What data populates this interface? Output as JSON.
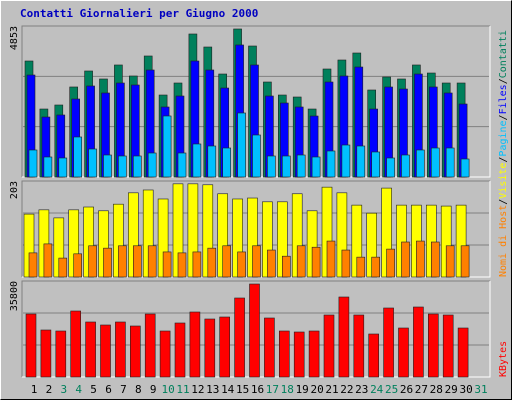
{
  "title": "Contatti Giornalieri per Giugno 2000",
  "legend_separator": "/",
  "weekend_days": [
    3,
    4,
    10,
    11,
    17,
    18,
    24,
    25,
    31
  ],
  "weekend_color": "#00805c",
  "chart_data": [
    {
      "type": "bar",
      "ylim": [
        0,
        4853
      ],
      "yticks": [
        4853
      ],
      "series": [
        {
          "name": "Contatti",
          "color": "#00805c",
          "values": [
            3728,
            2185,
            2314,
            2893,
            3407,
            3150,
            3600,
            3246,
            3889,
            2635,
            3021,
            4596,
            4178,
            3310,
            4757,
            4210,
            3053,
            2635,
            2571,
            2185,
            3471,
            3760,
            3985,
            2796,
            3214,
            3150,
            3600,
            3342,
            3021,
            3021,
            null
          ]
        },
        {
          "name": "Files",
          "color": "#0000ff",
          "values": [
            3278,
            1928,
            1993,
            2507,
            2925,
            2700,
            3021,
            2957,
            3439,
            2250,
            2603,
            3728,
            3439,
            2860,
            4243,
            3600,
            2603,
            2378,
            2250,
            1960,
            3053,
            3246,
            3535,
            2185,
            2893,
            2828,
            3310,
            2893,
            2700,
            2346,
            null
          ]
        },
        {
          "name": "Pagine",
          "color": "#00c0ff",
          "values": [
            868,
            643,
            611,
            1286,
            900,
            707,
            675,
            675,
            771,
            1961,
            771,
            1061,
            996,
            932,
            2057,
            1350,
            675,
            675,
            707,
            643,
            836,
            1028,
            996,
            804,
            611,
            707,
            868,
            932,
            932,
            579,
            null
          ]
        }
      ]
    },
    {
      "type": "bar",
      "ylim": [
        0,
        203
      ],
      "yticks": [
        203
      ],
      "series": [
        {
          "name": "Visite",
          "color": "#ffff00",
          "values": [
            133,
            142,
            125,
            142,
            148,
            140,
            154,
            178,
            184,
            165,
            197,
            197,
            195,
            176,
            165,
            167,
            159,
            159,
            176,
            140,
            190,
            178,
            152,
            135,
            188,
            152,
            152,
            152,
            150,
            152,
            null
          ]
        },
        {
          "name": "Nomi di Host",
          "color": "#ff8000",
          "values": [
            51,
            70,
            40,
            49,
            66,
            61,
            66,
            66,
            66,
            53,
            51,
            53,
            61,
            66,
            53,
            66,
            57,
            44,
            66,
            63,
            76,
            57,
            42,
            42,
            59,
            74,
            76,
            74,
            66,
            66,
            null
          ]
        }
      ]
    },
    {
      "type": "bar",
      "ylim": [
        0,
        35800
      ],
      "yticks": [
        35800
      ],
      "categories": [
        1,
        2,
        3,
        4,
        5,
        6,
        7,
        8,
        9,
        10,
        11,
        12,
        13,
        14,
        15,
        16,
        17,
        18,
        19,
        20,
        21,
        22,
        23,
        24,
        25,
        26,
        27,
        28,
        29,
        30,
        31
      ],
      "series": [
        {
          "name": "KBytes",
          "color": "#ff0000",
          "values": [
            23493,
            17527,
            17154,
            24612,
            20511,
            19392,
            20511,
            19019,
            23493,
            17154,
            20138,
            24239,
            21629,
            22374,
            29459,
            34680,
            22001,
            17154,
            16781,
            17154,
            23120,
            29832,
            23120,
            16035,
            25731,
            18272,
            26103,
            23493,
            23120,
            18272,
            null
          ]
        }
      ]
    }
  ]
}
